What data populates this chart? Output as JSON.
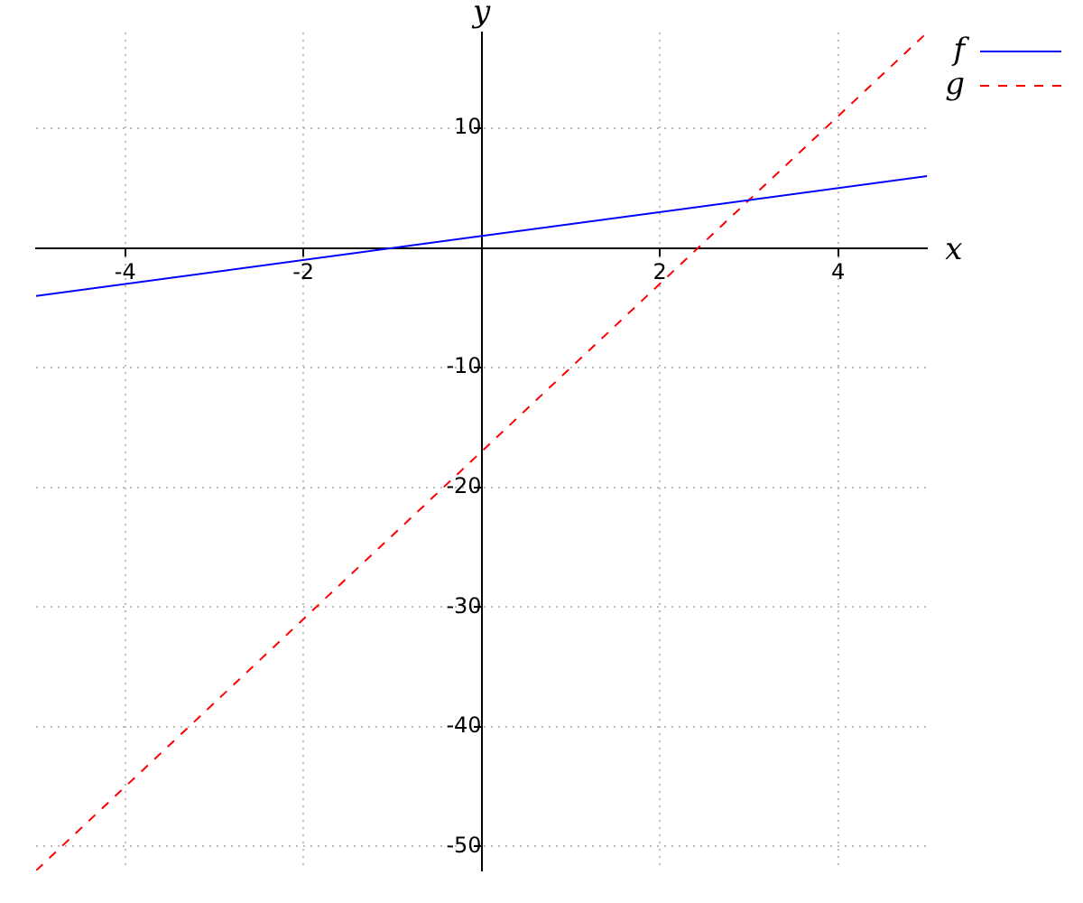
{
  "chart_data": {
    "type": "line",
    "xlabel": "x",
    "ylabel": "y",
    "x": [
      -5,
      5
    ],
    "xlim": [
      -5,
      5
    ],
    "ylim": [
      -52,
      18
    ],
    "xticks": [
      -4,
      -2,
      2,
      4
    ],
    "yticks": [
      -50,
      -40,
      -30,
      -20,
      -10,
      10
    ],
    "grid": true,
    "legend": "top right",
    "marker": "none",
    "series": [
      {
        "name": "f",
        "color": "#0000ff",
        "values": [
          -4,
          6
        ],
        "line_style": "solid"
      },
      {
        "name": "g",
        "color": "#ff0000",
        "values": [
          -52,
          18
        ],
        "line_style": "dashed"
      }
    ]
  }
}
